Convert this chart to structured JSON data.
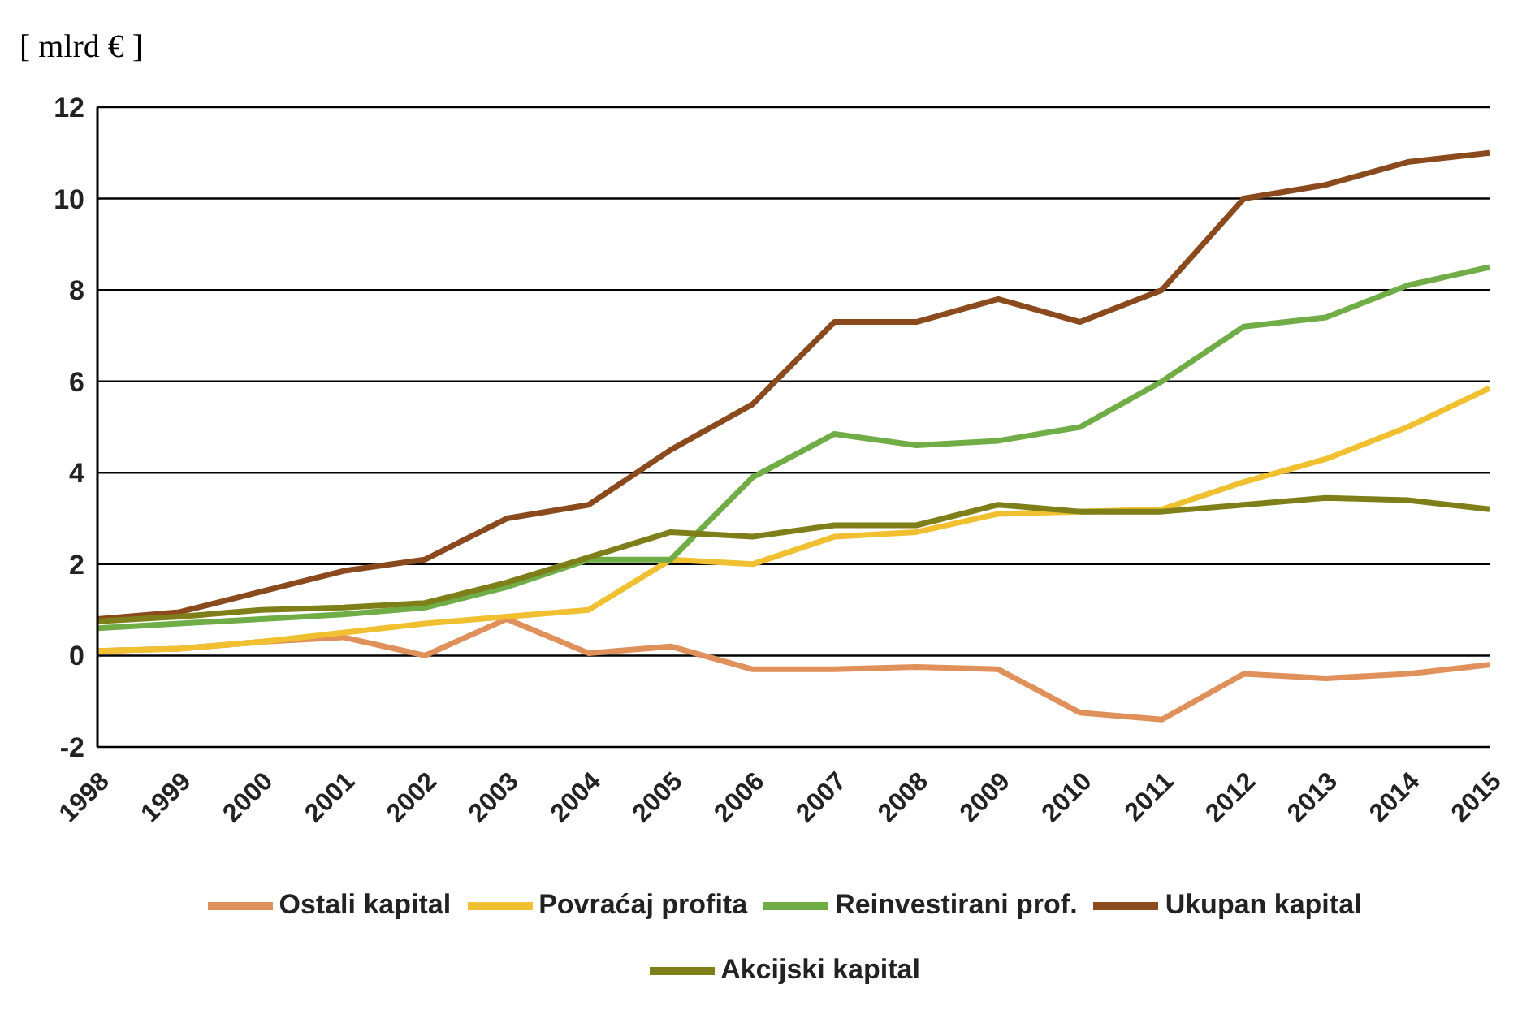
{
  "chart_data": {
    "type": "line",
    "ylabel": "[ mlrd € ]",
    "categories": [
      "1998",
      "1999",
      "2000",
      "2001",
      "2002",
      "2003",
      "2004",
      "2005",
      "2006",
      "2007",
      "2008",
      "2009",
      "2010",
      "2011",
      "2012",
      "2013",
      "2014",
      "2015"
    ],
    "series": [
      {
        "name": "Ostali kapital",
        "color": "#e0905a",
        "values": [
          0.1,
          0.15,
          0.3,
          0.4,
          0.0,
          0.8,
          0.05,
          0.2,
          -0.3,
          -0.3,
          -0.25,
          -0.3,
          -1.25,
          -1.4,
          -0.4,
          -0.5,
          -0.4,
          -0.2
        ]
      },
      {
        "name": "Povraćaj profita",
        "color": "#f0c030",
        "values": [
          0.1,
          0.15,
          0.3,
          0.5,
          0.7,
          0.85,
          1.0,
          2.1,
          2.0,
          2.6,
          2.7,
          3.1,
          3.15,
          3.2,
          3.8,
          4.3,
          5.0,
          5.85
        ]
      },
      {
        "name": "Reinvestirani prof.",
        "color": "#70ad47",
        "values": [
          0.6,
          0.7,
          0.8,
          0.9,
          1.05,
          1.5,
          2.1,
          2.1,
          3.9,
          4.85,
          4.6,
          4.7,
          5.0,
          6.0,
          7.2,
          7.4,
          8.1,
          8.5
        ]
      },
      {
        "name": "Ukupan kapital",
        "color": "#8b4a1e",
        "values": [
          0.8,
          0.95,
          1.4,
          1.85,
          2.1,
          3.0,
          3.3,
          4.5,
          5.5,
          7.3,
          7.3,
          7.8,
          7.3,
          8.0,
          10.0,
          10.3,
          10.8,
          11.0
        ]
      },
      {
        "name": "Akcijski kapital",
        "color": "#7f7f1a",
        "values": [
          0.75,
          0.85,
          1.0,
          1.05,
          1.15,
          1.6,
          2.15,
          2.7,
          2.6,
          2.85,
          2.85,
          3.3,
          3.15,
          3.15,
          3.3,
          3.45,
          3.4,
          3.2
        ]
      }
    ],
    "ylim": [
      -2,
      12
    ],
    "yticks": [
      -2,
      0,
      2,
      4,
      6,
      8,
      10,
      12
    ],
    "grid": "y",
    "legend": "bottom",
    "marker": "none",
    "line_style": "solid"
  }
}
